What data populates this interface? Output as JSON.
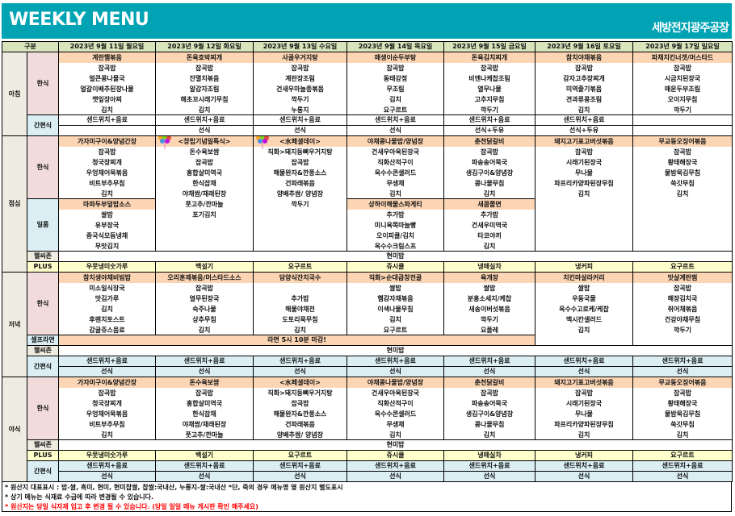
{
  "header": {
    "title": "WEEKLY MENU",
    "brand": "세방전지광주공장"
  },
  "colors": {
    "header_bg": "#00a3b4",
    "column_header_bg": "#d8e4bc",
    "main_dish_bg": "#fcd5b4",
    "hansik_label_bg": "#f2dcdb",
    "snack_bg": "#daeef3",
    "plus_bg": "#ffffcc",
    "notice_red": "#ff0000"
  },
  "columns": {
    "category": "구분",
    "days": [
      "2023년 9월 11일 월요일",
      "2023년 9월 12일 화요일",
      "2023년 9월 13일 수요일",
      "2023년 9월 14일 목요일",
      "2023년 9월 15일 금요일",
      "2023년 9월 16일 토요일",
      "2023년 9월 17일 일요일"
    ]
  },
  "breakfast": {
    "label": "아침",
    "hansik": {
      "label": "한식",
      "days": [
        {
          "main": "계란햄볶음",
          "items": [
            "잡곡밥",
            "얼큰콩나물국",
            "얼갈이배추된장나물",
            "깻잎장아찌",
            "김치"
          ]
        },
        {
          "main": "돈육호박찌개",
          "items": [
            "잡곡밥",
            "잔멸치볶음",
            "알감자조림",
            "해초꼬시래기무침",
            "김치"
          ]
        },
        {
          "main": "사골우거지탕",
          "items": [
            "잡곡밥",
            "계란장조림",
            "건새우마늘종볶음",
            "깍두기",
            "누룽지"
          ]
        },
        {
          "main": "매생이순두부탕",
          "items": [
            "잡곡밥",
            "동태강정",
            "무조림",
            "김치",
            "요구르트"
          ]
        },
        {
          "main": "돈육김치찌개",
          "items": [
            "잡곡밥",
            "비엔나케찹조림",
            "열무나물",
            "고추지무침",
            "깍두기"
          ]
        },
        {
          "main": "참치야채볶음",
          "items": [
            "잡곡밥",
            "감자고추장찌개",
            "미역줄기볶음",
            "견과류콩조림",
            "김치"
          ]
        },
        {
          "main": "파채치킨너겟/머스타드",
          "items": [
            "잡곡밥",
            "시금치된장국",
            "매운두부조림",
            "오이지무침",
            "깍두기"
          ]
        }
      ]
    },
    "snack": {
      "label": "간편식",
      "line1": [
        "샌드위치+음료",
        "샌드위치+음료",
        "샌드위치+음료",
        "샌드위치+음료",
        "샌드위치+음료",
        "샌드위치+음료",
        ""
      ],
      "line2": [
        "",
        "선식",
        "선식",
        "선식",
        "선식+두유",
        "선식+두유",
        ""
      ]
    }
  },
  "lunch": {
    "label": "점심",
    "hansik": {
      "label": "한식",
      "days": [
        {
          "main": "가자미구이&양념간장",
          "items": [
            "잡곡밥",
            "청국장찌개",
            "우엉채어묵볶음",
            "비트부추무침",
            "김치"
          ]
        },
        {
          "main": "<창립기념일특식>",
          "items": [
            "돈수육보쌈",
            "잡곡밥",
            "홍합살미역국",
            "한식잡채",
            "야채쌈/재래된장",
            "풋고추/깐마늘",
            "포기김치"
          ]
        },
        {
          "main": "<水페셜데이>",
          "items": [
            "직화>돼지등뼈우거지탕",
            "잡곡밥",
            "해물완자&깐풍소스",
            "건파래볶음",
            "양배추쌈/ 양념장",
            "깍두기"
          ]
        },
        {
          "main": "야채콩나물밥/양념장",
          "items": [
            "건새우아욱된장국",
            "직화산적구이",
            "옥수수콘샐러드",
            "무생채",
            "김치"
          ]
        },
        {
          "main": "춘천닭갈비",
          "items": [
            "잡곡밥",
            "파송송어묵국",
            "생김구이&양념장",
            "콩나물무침",
            "김치"
          ]
        },
        {
          "main": "돼지고기표고버섯볶음",
          "items": [
            "잡곡밥",
            "시래기된장국",
            "무나물",
            "파프리카양파된장무침",
            "김치"
          ]
        },
        {
          "main": "무교동오징어볶음",
          "items": [
            "잡곡밥",
            "황태해장국",
            "물밤묵김무침",
            "쑥갓무침",
            "김치"
          ]
        }
      ]
    },
    "ilpum": {
      "label": "일품",
      "days": [
        {
          "main": "마파두부덮밥소스",
          "items": [
            "쌀밥",
            "유부장국",
            "중국식모듬냉채",
            "무맛김치"
          ]
        },
        null,
        null,
        {
          "main": "상하이해물스파게티",
          "items": [
            "추가밥",
            "미니육쪽마늘빵",
            "오이피클/김치",
            "옥수수크림스프"
          ]
        },
        {
          "main": "새콤쫄면",
          "items": [
            "추가밥",
            "건새우미역국",
            "타코야끼",
            "김치"
          ]
        },
        null,
        null
      ]
    },
    "healthy": {
      "label": "헬씨존",
      "value": "현미밥"
    },
    "plus": {
      "label": "PLUS",
      "values": [
        "우뭇냉미숫가루",
        "백설기",
        "요구르트",
        "쥬시쿨",
        "냉매실차",
        "냉커피",
        "요구르트"
      ]
    }
  },
  "dinner": {
    "label": "저녁",
    "hansik": {
      "label": "한식",
      "days": [
        {
          "main": "참치생야채비빔밥",
          "items": [
            "미소일식장국",
            "맛김가루",
            "김치",
            "후렌치토스트",
            "감귤쥬스음료"
          ]
        },
        {
          "main": "오리훈제볶음/머스타드소스",
          "items": [
            "잡곡밥",
            "열무된장국",
            "숙주나물",
            "상추무침",
            "김치"
          ]
        },
        {
          "main": "담양식잔치국수",
          "items": [
            "",
            "추가밥",
            "해물야채전",
            "도토리묵무침",
            "김치"
          ]
        },
        {
          "main": "직화>순대곱창전골",
          "items": [
            "쌀밥",
            "햄감자채볶음",
            "이색나물무침",
            "김치",
            "요구르트"
          ]
        },
        {
          "main": "육개장",
          "items": [
            "쌀밥",
            "분홍소세지/케찹",
            "새송이버섯볶음",
            "깍두기",
            "요플레"
          ]
        },
        {
          "main": "치킨마살라커리",
          "items": [
            "쌀밥",
            "우동국물",
            "옥수수고로케/케찹",
            "멕시칸샐러드",
            "김치"
          ]
        },
        {
          "main": "맛살계란찜",
          "items": [
            "잡곡밥",
            "해장김치국",
            "쥐어채볶음",
            "건강야채무침",
            "깍두기"
          ]
        }
      ]
    },
    "self_ramen": {
      "label": "셀프라면",
      "notice": "라면 5시 10분 마감!"
    },
    "healthy": {
      "label": "헬씨존",
      "value": "현미밥"
    },
    "snack": {
      "label": "간편식",
      "line1": [
        "샌드위치+음료",
        "샌드위치+음료",
        "샌드위치+음료",
        "샌드위치+음료",
        "샌드위치+음료",
        "샌드위치+음료",
        "샌드위치+음료"
      ],
      "line2": [
        "선식",
        "선식",
        "선식",
        "선식",
        "선식",
        "선식",
        "선식"
      ]
    }
  },
  "late": {
    "label": "야식",
    "hansik": {
      "label": "한식",
      "days": [
        {
          "main": "가자미구이&양념간장",
          "items": [
            "잡곡밥",
            "청국장찌개",
            "우엉채어묵볶음",
            "비트부추무침",
            "김치"
          ]
        },
        {
          "main": "돈수육보쌈",
          "items": [
            "잡곡밥",
            "홍합살미역국",
            "한식잡채",
            "야채쌈/재래된장",
            "풋고추/깐마늘"
          ]
        },
        {
          "main": "<水페셜데이>",
          "items": [
            "직화>돼지등뼈우거지탕",
            "잡곡밥",
            "해물완자&깐풍소스",
            "건파래볶음",
            "양배추쌈/ 양념장"
          ]
        },
        {
          "main": "야채콩나물밥/양념장",
          "items": [
            "건새우아욱된장국",
            "직화산적구이",
            "옥수수콘샐러드",
            "무생채",
            "김치"
          ]
        },
        {
          "main": "춘천닭갈비",
          "items": [
            "잡곡밥",
            "파송송어묵국",
            "생김구이&양념장",
            "콩나물무침",
            "김치"
          ]
        },
        {
          "main": "돼지고기표고버섯볶음",
          "items": [
            "잡곡밥",
            "시래기된장국",
            "무나물",
            "파프리카양파된장무침",
            "김치"
          ]
        },
        {
          "main": "무교동오징어볶음",
          "items": [
            "잡곡밥",
            "황태해장국",
            "물밤묵김무침",
            "쑥갓무침",
            "김치"
          ]
        }
      ]
    },
    "healthy": {
      "label": "헬씨존",
      "value": "현미밥"
    },
    "plus": {
      "label": "PLUS",
      "values": [
        "우뭇냉미숫가루",
        "백설기",
        "요구르트",
        "쥬시쿨",
        "냉매실차",
        "냉커피",
        "요구르트"
      ]
    },
    "snack": {
      "label": "간편식",
      "line1": [
        "샌드위치+음료",
        "샌드위치+음료",
        "샌드위치+음료",
        "샌드위치+음료",
        "샌드위치+음료",
        "샌드위치+음료",
        "샌드위치+음료"
      ],
      "line2": [
        "선식",
        "선식",
        "선식",
        "선식",
        "선식",
        "선식",
        "선식"
      ]
    }
  },
  "footnotes": [
    "* 원산지 대표표시 : 밥-쌀, 흑미, 현미, 현미찹쌀, 찹쌀:국내산, 누룽지-쌀:국내산  *단, 죽의 경우 메뉴명 옆 원산지 별도표시",
    "* 상기 메뉴는 식재료 수급에 따라 변경될 수 있습니다.",
    "* 원산지는 당일 식자재 입고 후 변경 될 수 있습니다.  (당일 일일 메뉴 게시판 확인 해주세요)"
  ]
}
